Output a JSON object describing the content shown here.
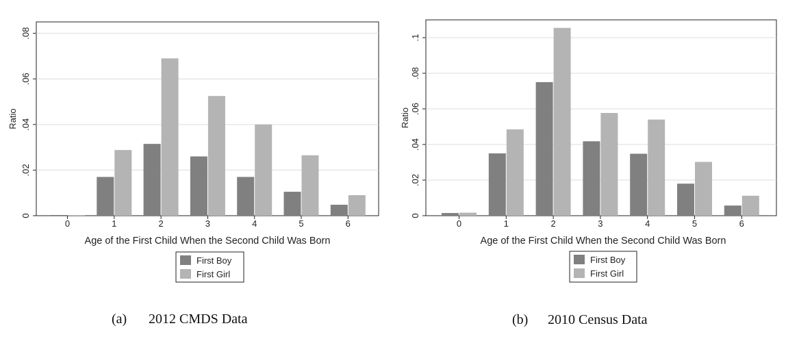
{
  "chart_data": [
    {
      "type": "bar",
      "title": "",
      "xlabel": "Age of the First Child When the Second Child Was Born",
      "ylabel": "Ratio",
      "categories": [
        "0",
        "1",
        "2",
        "3",
        "4",
        "5",
        "6"
      ],
      "series": [
        {
          "name": "First Boy",
          "color": "#808080",
          "values": [
            0.0003,
            0.017,
            0.0315,
            0.026,
            0.017,
            0.0105,
            0.0048
          ]
        },
        {
          "name": "First Girl",
          "color": "#b4b4b4",
          "values": [
            0.0002,
            0.0288,
            0.069,
            0.0525,
            0.04,
            0.0265,
            0.009
          ]
        }
      ],
      "ylim": [
        0,
        0.085
      ],
      "yticks": [
        0,
        0.02,
        0.04,
        0.06,
        0.08
      ],
      "ytick_labels": [
        "0",
        ".02",
        ".04",
        ".06",
        ".08"
      ],
      "grid": true,
      "legend_position": "bottom-center",
      "caption": {
        "letter": "(a)",
        "text": "2012 CMDS Data"
      }
    },
    {
      "type": "bar",
      "title": "",
      "xlabel": "Age of the First Child When the Second Child Was Born",
      "ylabel": "Ratio",
      "categories": [
        "0",
        "1",
        "2",
        "3",
        "4",
        "5",
        "6"
      ],
      "series": [
        {
          "name": "First Boy",
          "color": "#808080",
          "values": [
            0.0015,
            0.035,
            0.075,
            0.0418,
            0.0348,
            0.018,
            0.0057
          ]
        },
        {
          "name": "First Girl",
          "color": "#b4b4b4",
          "values": [
            0.0017,
            0.0485,
            0.1055,
            0.0577,
            0.054,
            0.0302,
            0.0112
          ]
        }
      ],
      "ylim": [
        0,
        0.11
      ],
      "yticks": [
        0,
        0.02,
        0.04,
        0.06,
        0.08,
        0.1
      ],
      "ytick_labels": [
        "0",
        ".02",
        ".04",
        ".06",
        ".08",
        ".1"
      ],
      "grid": true,
      "legend_position": "bottom-center",
      "caption": {
        "letter": "(b)",
        "text": "2010 Census Data"
      }
    }
  ]
}
